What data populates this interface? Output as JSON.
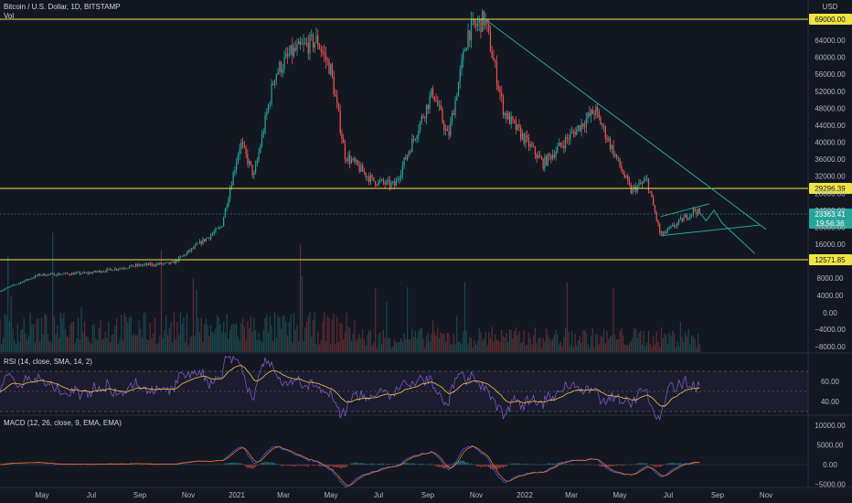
{
  "header": {
    "symbol_line": "Bitcoin / U.S. Dollar, 1D, BITSTAMP",
    "volume_label": "Vol",
    "rsi_legend": "RSI (14, close, SMA, 14, 2)",
    "macd_legend": "MACD (12, 26, close, 9, EMA, EMA)",
    "currency": "USD"
  },
  "colors": {
    "background": "#131722",
    "up": "#26a69a",
    "down": "#ef5350",
    "level_line": "#f0e442",
    "trend_line": "#26a69a",
    "rsi_line": "#7e57c2",
    "rsi_ma": "#f5c542",
    "macd_line": "#2962ff",
    "signal_line": "#ff6d00"
  },
  "chart_data": {
    "type": "candlestick",
    "x_ticks": [
      "May",
      "Jul",
      "Sep",
      "Nov",
      "2021",
      "Mar",
      "May",
      "Jul",
      "Sep",
      "Nov",
      "2022",
      "Mar",
      "May",
      "Jul",
      "Sep",
      "Nov"
    ],
    "price_axis": {
      "ticks": [
        "64000.00",
        "60000.00",
        "56000.00",
        "52000.00",
        "48000.00",
        "44000.00",
        "40000.00",
        "36000.00",
        "32000.00",
        "28000.00",
        "24000.00",
        "20000.00",
        "16000.00"
      ],
      "levels": [
        {
          "label": "69000.00"
        },
        {
          "label": "29296.39"
        },
        {
          "label": "12571.85"
        }
      ],
      "current_price": {
        "label": "23363.41"
      },
      "current_sub": {
        "label": "19:56:36"
      }
    },
    "volume_axis": {
      "ticks": [
        "8000.00",
        "4000.00",
        "0.00",
        "−4000.00",
        "−8000.00"
      ]
    },
    "rsi_axis": {
      "ticks": [
        "60.00",
        "40.00"
      ]
    },
    "macd_axis": {
      "ticks": [
        "10000.00",
        "5000.00",
        "0.00",
        "−5000.00"
      ]
    },
    "price_path": [
      {
        "date": "2020-03-13",
        "close": 5000
      },
      {
        "date": "2020-05-01",
        "close": 8800
      },
      {
        "date": "2020-07-01",
        "close": 9200
      },
      {
        "date": "2020-09-01",
        "close": 11000
      },
      {
        "date": "2020-10-15",
        "close": 11500
      },
      {
        "date": "2020-11-01",
        "close": 13800
      },
      {
        "date": "2020-12-15",
        "close": 20000
      },
      {
        "date": "2021-01-08",
        "close": 40000
      },
      {
        "date": "2021-01-25",
        "close": 32000
      },
      {
        "date": "2021-02-20",
        "close": 56000
      },
      {
        "date": "2021-03-13",
        "close": 61000
      },
      {
        "date": "2021-04-14",
        "close": 64000
      },
      {
        "date": "2021-05-01",
        "close": 57000
      },
      {
        "date": "2021-05-19",
        "close": 37000
      },
      {
        "date": "2021-06-22",
        "close": 31000
      },
      {
        "date": "2021-07-20",
        "close": 29800
      },
      {
        "date": "2021-09-06",
        "close": 52000
      },
      {
        "date": "2021-09-25",
        "close": 41000
      },
      {
        "date": "2021-10-20",
        "close": 66000
      },
      {
        "date": "2021-11-10",
        "close": 69000
      },
      {
        "date": "2021-12-04",
        "close": 47000
      },
      {
        "date": "2022-01-22",
        "close": 35000
      },
      {
        "date": "2022-03-28",
        "close": 47500
      },
      {
        "date": "2022-05-12",
        "close": 28500
      },
      {
        "date": "2022-06-01",
        "close": 31000
      },
      {
        "date": "2022-06-18",
        "close": 18000
      },
      {
        "date": "2022-07-10",
        "close": 21000
      },
      {
        "date": "2022-07-30",
        "close": 24000
      },
      {
        "date": "2022-08-06",
        "close": 23363
      }
    ],
    "annotations": [
      {
        "type": "trend_line",
        "from": {
          "date": "2021-11-10",
          "price": 69000
        },
        "to": {
          "date": "2022-10-28",
          "price": 19500
        }
      },
      {
        "type": "channel_top",
        "from": {
          "date": "2022-06-18",
          "price": 22500
        },
        "to": {
          "date": "2022-08-18",
          "price": 25500
        }
      },
      {
        "type": "channel_bottom",
        "from": {
          "date": "2022-06-18",
          "price": 18000
        },
        "to": {
          "date": "2022-10-20",
          "price": 20500
        }
      },
      {
        "type": "projection",
        "points": [
          {
            "date": "2022-08-06",
            "price": 23400
          },
          {
            "date": "2022-08-14",
            "price": 21500
          },
          {
            "date": "2022-08-24",
            "price": 24000
          },
          {
            "date": "2022-09-03",
            "price": 21000
          },
          {
            "date": "2022-10-14",
            "price": 13800
          }
        ]
      }
    ]
  }
}
